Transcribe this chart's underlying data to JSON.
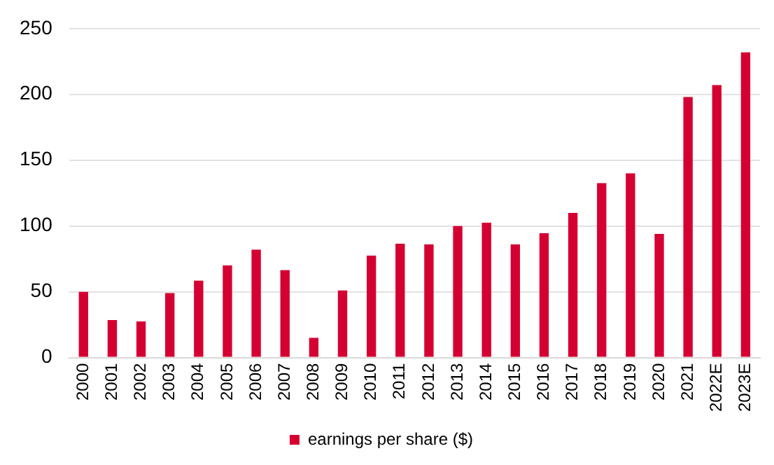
{
  "chart_data": {
    "type": "bar",
    "categories": [
      "2000",
      "2001",
      "2002",
      "2003",
      "2004",
      "2005",
      "2006",
      "2007",
      "2008",
      "2009",
      "2010",
      "2011",
      "2012",
      "2013",
      "2014",
      "2015",
      "2016",
      "2017",
      "2018",
      "2019",
      "2020",
      "2021",
      "2022E",
      "2023E"
    ],
    "series": [
      {
        "name": "earnings per share ($)",
        "color": "#d50032",
        "values": [
          50,
          28.5,
          27.5,
          49,
          58.5,
          70,
          82,
          66.5,
          15,
          51,
          77.5,
          86.5,
          86,
          100,
          102.5,
          86,
          94.5,
          110,
          132.5,
          140,
          94,
          198,
          207,
          232
        ]
      }
    ],
    "ylim": [
      0,
      250
    ],
    "yticks": [
      0,
      50,
      100,
      150,
      200,
      250
    ],
    "grid": "y",
    "legend": "bottom"
  }
}
